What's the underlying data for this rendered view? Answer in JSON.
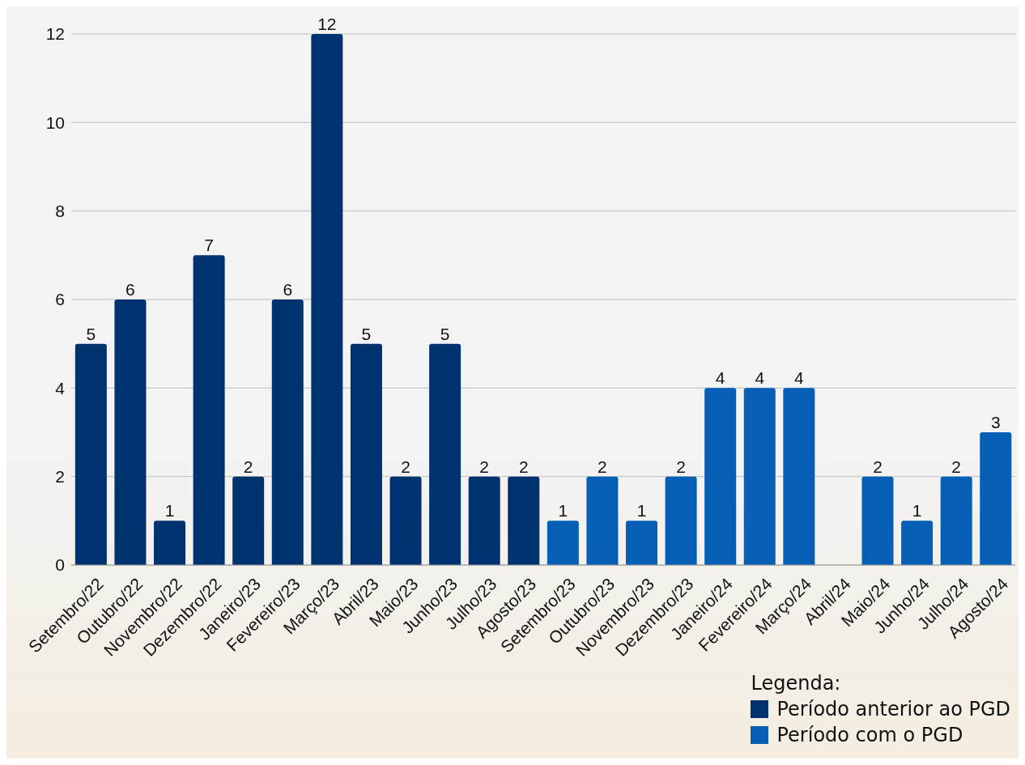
{
  "chart_data": {
    "type": "bar",
    "categories": [
      "Setembro/22",
      "Outubro/22",
      "Novembro/22",
      "Dezembro/22",
      "Janeiro/23",
      "Fevereiro/23",
      "Março/23",
      "Abril/23",
      "Maio/23",
      "Junho/23",
      "Julho/23",
      "Agosto/23",
      "Setembro/23",
      "Outubro/23",
      "Novembro/23",
      "Dezembro/23",
      "Janeiro/24",
      "Fevereiro/24",
      "Março/24",
      "Abril/24",
      "Maio/24",
      "Junho/24",
      "Julho/24",
      "Agosto/24"
    ],
    "series": [
      {
        "name": "Período anterior ao PGD",
        "color": "#003270",
        "values": [
          5,
          6,
          1,
          7,
          2,
          6,
          12,
          5,
          2,
          5,
          2,
          2,
          null,
          null,
          null,
          null,
          null,
          null,
          null,
          null,
          null,
          null,
          null,
          null
        ]
      },
      {
        "name": "Período com o PGD",
        "color": "#065fb5",
        "values": [
          null,
          null,
          null,
          null,
          null,
          null,
          null,
          null,
          null,
          null,
          null,
          null,
          1,
          2,
          1,
          2,
          4,
          4,
          4,
          null,
          2,
          1,
          2,
          3
        ]
      }
    ],
    "ylim": [
      0,
      12
    ],
    "yticks": [
      0,
      2,
      4,
      6,
      8,
      10,
      12
    ],
    "grid": "y",
    "data_labels": true,
    "legend": "bottom right",
    "legend_title": "Legenda:"
  }
}
